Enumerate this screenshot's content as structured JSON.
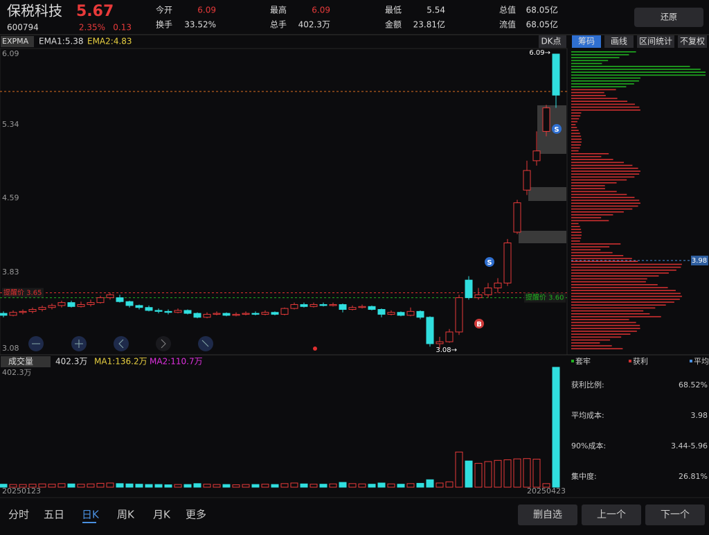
{
  "header": {
    "name": "保税科技",
    "price": "5.67",
    "code": "600794",
    "pct": "2.35%",
    "change": "0.13",
    "stats": [
      [
        "今开",
        "6.09"
      ],
      [
        "换手",
        "33.52%"
      ],
      [
        "最高",
        "6.09"
      ],
      [
        "总手",
        "402.3万"
      ],
      [
        "最低",
        "5.54"
      ],
      [
        "金额",
        "23.81亿"
      ],
      [
        "总值",
        "68.05亿"
      ],
      [
        "流值",
        "68.05亿"
      ]
    ],
    "restore": "还原"
  },
  "toolbar": {
    "indicator": "EXPMA",
    "ema1": "EMA1:5.38",
    "ema2": "EMA2:4.83",
    "dk": "DK点",
    "tabs": [
      "筹码",
      "画线",
      "区间统计",
      "不复权"
    ]
  },
  "price_chart": {
    "ylim": [
      3.08,
      6.09
    ],
    "yticks": [
      6.09,
      5.34,
      4.59,
      3.83,
      3.08
    ],
    "high_label": "6.09→",
    "low_label": "3.08→",
    "alerts": [
      {
        "value": 3.65,
        "label": "提醒价 3.65",
        "color": "#e03030"
      },
      {
        "value": 3.6,
        "label": "提醒价 3.60",
        "color": "#20b020"
      }
    ],
    "avg_cost": 3.98,
    "signals": [
      "S",
      "B",
      "S"
    ],
    "candles": [
      [
        3.44,
        3.42,
        3.46,
        3.4
      ],
      [
        3.42,
        3.45,
        3.47,
        3.41
      ],
      [
        3.45,
        3.46,
        3.48,
        3.43
      ],
      [
        3.46,
        3.48,
        3.5,
        3.44
      ],
      [
        3.48,
        3.5,
        3.52,
        3.46
      ],
      [
        3.5,
        3.52,
        3.54,
        3.48
      ],
      [
        3.52,
        3.55,
        3.57,
        3.5
      ],
      [
        3.55,
        3.51,
        3.57,
        3.5
      ],
      [
        3.51,
        3.53,
        3.56,
        3.5
      ],
      [
        3.53,
        3.55,
        3.58,
        3.51
      ],
      [
        3.55,
        3.6,
        3.62,
        3.54
      ],
      [
        3.6,
        3.63,
        3.65,
        3.58
      ],
      [
        3.6,
        3.56,
        3.63,
        3.55
      ],
      [
        3.56,
        3.52,
        3.57,
        3.5
      ],
      [
        3.52,
        3.5,
        3.53,
        3.48
      ],
      [
        3.5,
        3.47,
        3.52,
        3.46
      ],
      [
        3.47,
        3.46,
        3.49,
        3.44
      ],
      [
        3.46,
        3.45,
        3.48,
        3.43
      ],
      [
        3.45,
        3.47,
        3.49,
        3.44
      ],
      [
        3.47,
        3.44,
        3.48,
        3.43
      ],
      [
        3.44,
        3.4,
        3.45,
        3.39
      ],
      [
        3.4,
        3.43,
        3.45,
        3.39
      ],
      [
        3.43,
        3.44,
        3.46,
        3.42
      ],
      [
        3.44,
        3.42,
        3.45,
        3.41
      ],
      [
        3.42,
        3.43,
        3.45,
        3.41
      ],
      [
        3.43,
        3.44,
        3.46,
        3.42
      ],
      [
        3.44,
        3.43,
        3.46,
        3.42
      ],
      [
        3.43,
        3.45,
        3.47,
        3.42
      ],
      [
        3.45,
        3.43,
        3.46,
        3.42
      ],
      [
        3.43,
        3.49,
        3.5,
        3.42
      ],
      [
        3.49,
        3.53,
        3.55,
        3.48
      ],
      [
        3.53,
        3.51,
        3.55,
        3.5
      ],
      [
        3.51,
        3.53,
        3.55,
        3.5
      ],
      [
        3.53,
        3.52,
        3.55,
        3.51
      ],
      [
        3.52,
        3.53,
        3.55,
        3.51
      ],
      [
        3.53,
        3.48,
        3.54,
        3.45
      ],
      [
        3.48,
        3.5,
        3.52,
        3.47
      ],
      [
        3.5,
        3.51,
        3.53,
        3.49
      ],
      [
        3.51,
        3.48,
        3.52,
        3.47
      ],
      [
        3.48,
        3.43,
        3.49,
        3.4
      ],
      [
        3.43,
        3.45,
        3.47,
        3.42
      ],
      [
        3.45,
        3.42,
        3.46,
        3.41
      ],
      [
        3.42,
        3.46,
        3.5,
        3.41
      ],
      [
        3.46,
        3.4,
        3.47,
        3.38
      ],
      [
        3.4,
        3.13,
        3.41,
        3.1
      ],
      [
        3.13,
        3.15,
        3.2,
        3.08
      ],
      [
        3.15,
        3.25,
        3.28,
        3.14
      ],
      [
        3.25,
        3.6,
        3.63,
        3.22
      ],
      [
        3.78,
        3.6,
        3.82,
        3.58
      ],
      [
        3.6,
        3.63,
        3.7,
        3.58
      ],
      [
        3.63,
        3.7,
        3.75,
        3.6
      ],
      [
        3.7,
        3.75,
        3.8,
        3.65
      ],
      [
        3.75,
        4.16,
        4.2,
        3.72
      ],
      [
        4.27,
        4.57,
        4.6,
        4.25
      ],
      [
        4.7,
        4.9,
        5.0,
        4.65
      ],
      [
        5.0,
        5.1,
        5.3,
        4.95
      ],
      [
        5.3,
        5.54,
        5.57,
        5.25
      ],
      [
        6.09,
        5.67,
        6.09,
        5.54
      ]
    ]
  },
  "volume_chart": {
    "title": "成交量",
    "current": "402.3万",
    "ma1": "MA1:136.2万",
    "ma2": "MA2:110.7万",
    "top_label": "402.3万",
    "ylim": [
      0,
      402.3
    ],
    "volumes": [
      10,
      9,
      9,
      10,
      11,
      10,
      12,
      11,
      10,
      11,
      13,
      14,
      12,
      11,
      10,
      9,
      9,
      8,
      9,
      9,
      12,
      10,
      9,
      9,
      8,
      9,
      9,
      10,
      9,
      12,
      14,
      11,
      10,
      10,
      11,
      16,
      12,
      11,
      10,
      14,
      11,
      10,
      12,
      13,
      25,
      14,
      18,
      118,
      88,
      80,
      86,
      90,
      92,
      95,
      96,
      94,
      12,
      402.3
    ],
    "start_date": "20250123",
    "end_date": "20250423"
  },
  "chip_panel": {
    "legend": [
      "套牢",
      "获利",
      "平均"
    ],
    "rows": [
      [
        "获利比例:",
        "68.52%"
      ],
      [
        "平均成本:",
        "3.98"
      ],
      [
        "90%成本:",
        "3.44-5.96"
      ],
      [
        "集中度:",
        "26.81%"
      ]
    ]
  },
  "bottom_nav": {
    "periods": [
      "分时",
      "五日",
      "日K",
      "周K",
      "月K",
      "更多"
    ],
    "buttons": [
      "删自选",
      "上一个",
      "下一个"
    ]
  }
}
